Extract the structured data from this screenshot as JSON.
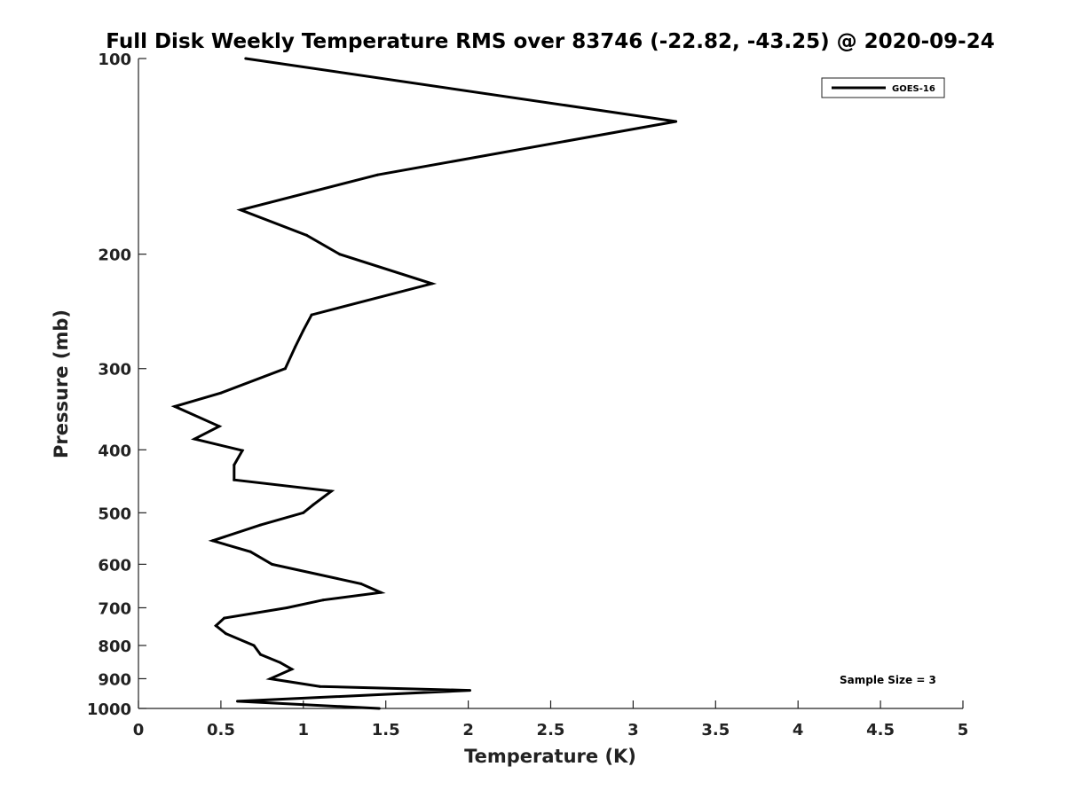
{
  "chart_data": {
    "type": "line",
    "title": "Full Disk Weekly Temperature RMS over 83746 (-22.82, -43.25) @ 2020-09-24",
    "xlabel": "Temperature (K)",
    "ylabel": "Pressure (mb)",
    "xlim": [
      0,
      5
    ],
    "ylim": [
      100,
      1000
    ],
    "y_scale": "log",
    "y_reversed": true,
    "x_ticks": [
      "0",
      "0.5",
      "1",
      "1.5",
      "2",
      "2.5",
      "3",
      "3.5",
      "4",
      "4.5",
      "5"
    ],
    "y_ticks": [
      "100",
      "200",
      "300",
      "400",
      "500",
      "600",
      "700",
      "800",
      "900",
      "1000"
    ],
    "grid": false,
    "legend_position": "top-right",
    "annotation": "Sample Size = 3",
    "series": [
      {
        "name": "GOES-16",
        "color": "#000000",
        "x": [
          0.65,
          3.26,
          1.45,
          0.62,
          1.02,
          1.22,
          1.78,
          1.05,
          1.0,
          0.95,
          0.89,
          0.5,
          0.22,
          0.49,
          0.34,
          0.63,
          0.58,
          0.58,
          1.17,
          1.06,
          1.0,
          0.74,
          0.45,
          0.68,
          0.81,
          1.35,
          1.47,
          1.12,
          0.9,
          0.52,
          0.47,
          0.53,
          0.7,
          0.74,
          0.86,
          0.93,
          0.8,
          1.1,
          2.01,
          0.6,
          1.46
        ],
        "y": [
          100,
          125,
          151,
          171,
          187,
          200,
          222,
          248,
          262,
          278,
          300,
          327,
          343,
          368,
          385,
          401,
          422,
          445,
          463,
          486,
          500,
          522,
          552,
          574,
          600,
          643,
          663,
          681,
          700,
          726,
          746,
          767,
          800,
          826,
          850,
          870,
          900,
          925,
          938,
          975,
          1000
        ]
      }
    ]
  }
}
